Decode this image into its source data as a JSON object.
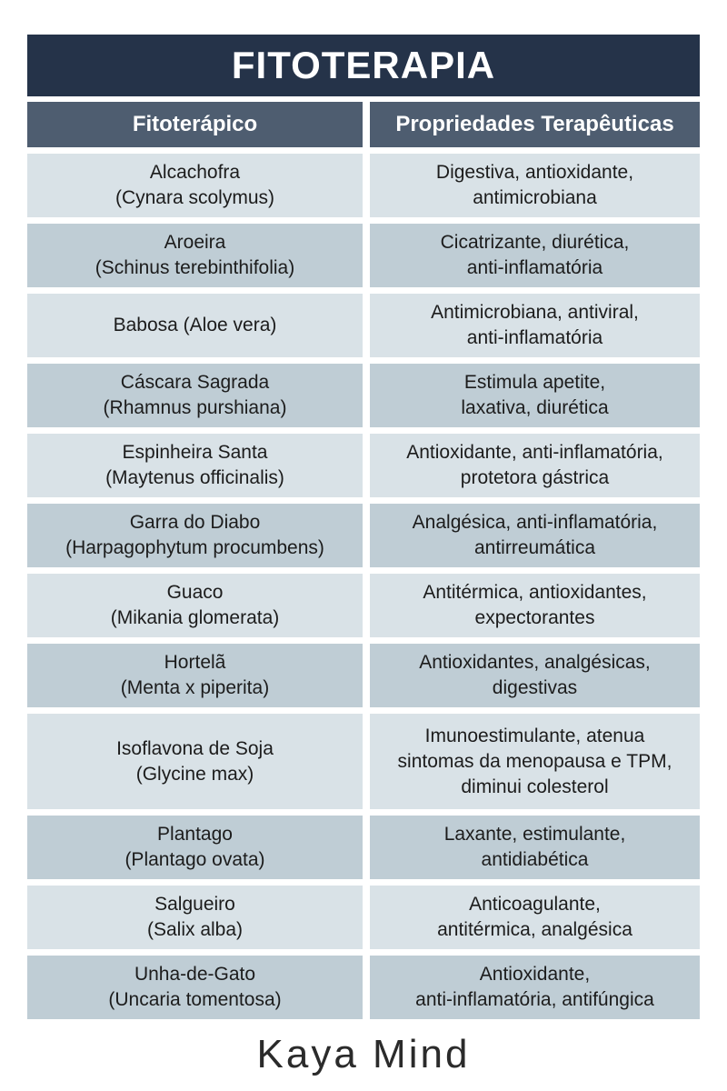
{
  "chart_data": {
    "type": "table",
    "title": "FITOTERAPIA",
    "columns": [
      "Fitoterápico",
      "Propriedades Terapêuticas"
    ],
    "rows": [
      {
        "herb": [
          "Alcachofra",
          "(Cynara scolymus)"
        ],
        "properties": [
          "Digestiva, antioxidante,",
          "antimicrobiana"
        ]
      },
      {
        "herb": [
          "Aroeira",
          "(Schinus terebinthifolia)"
        ],
        "properties": [
          "Cicatrizante, diurética,",
          "anti-inflamatória"
        ]
      },
      {
        "herb": [
          "Babosa (Aloe vera)"
        ],
        "properties": [
          "Antimicrobiana, antiviral,",
          "anti-inflamatória"
        ]
      },
      {
        "herb": [
          "Cáscara Sagrada",
          "(Rhamnus purshiana)"
        ],
        "properties": [
          "Estimula apetite,",
          "laxativa, diurética"
        ]
      },
      {
        "herb": [
          "Espinheira Santa",
          "(Maytenus officinalis)"
        ],
        "properties": [
          "Antioxidante, anti-inflamatória,",
          "protetora gástrica"
        ]
      },
      {
        "herb": [
          "Garra do Diabo",
          "(Harpagophytum procumbens)"
        ],
        "properties": [
          "Analgésica, anti-inflamatória,",
          "antirreumática"
        ]
      },
      {
        "herb": [
          "Guaco",
          "(Mikania glomerata)"
        ],
        "properties": [
          "Antitérmica, antioxidantes,",
          "expectorantes"
        ]
      },
      {
        "herb": [
          "Hortelã",
          "(Menta x piperita)"
        ],
        "properties": [
          "Antioxidantes, analgésicas,",
          "digestivas"
        ]
      },
      {
        "herb": [
          "Isoflavona de Soja",
          "(Glycine max)"
        ],
        "properties": [
          "Imunoestimulante, atenua",
          "sintomas da menopausa e TPM,",
          "diminui colesterol"
        ]
      },
      {
        "herb": [
          "Plantago",
          "(Plantago ovata)"
        ],
        "properties": [
          "Laxante, estimulante,",
          "antidiabética"
        ]
      },
      {
        "herb": [
          "Salgueiro",
          "(Salix alba)"
        ],
        "properties": [
          "Anticoagulante,",
          "antitérmica, analgésica"
        ]
      },
      {
        "herb": [
          "Unha-de-Gato",
          "(Uncaria tomentosa)"
        ],
        "properties": [
          "Antioxidante,",
          "anti-inflamatória, antifúngica"
        ]
      }
    ],
    "layout": {
      "row_shading": "alternating"
    }
  },
  "footer": {
    "logo_text": "Kaya Mind"
  },
  "colors": {
    "title_bg": "#253349",
    "header_bg": "#4e5d70",
    "row_light": "#d9e2e7",
    "row_dark": "#bfcdd5",
    "body_text": "#1c1c1c",
    "header_text": "#ffffff",
    "logo_text": "#2b2b2b"
  }
}
